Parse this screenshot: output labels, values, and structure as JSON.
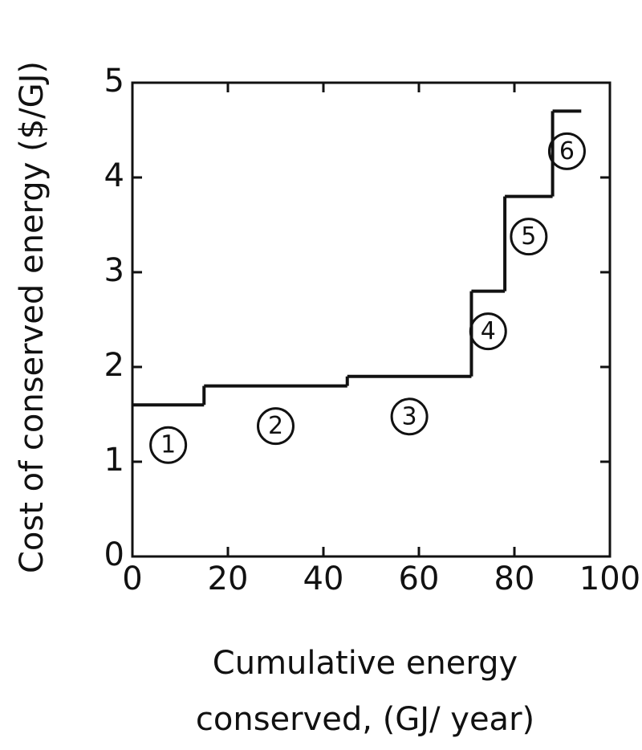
{
  "chart_data": {
    "type": "step",
    "xlabel": [
      "Cumulative energy",
      "conserved, (GJ/ year)"
    ],
    "ylabel": "Cost of conserved energy ($/GJ)",
    "x": [
      0,
      15,
      45,
      71,
      78,
      88,
      94
    ],
    "values": [
      1.6,
      1.8,
      1.9,
      2.8,
      3.8,
      4.7
    ],
    "labels": [
      "1",
      "2",
      "3",
      "4",
      "5",
      "6"
    ],
    "color": "#111111",
    "xlim": [
      0,
      100
    ],
    "ylim": [
      0,
      5
    ],
    "xticks": [
      0,
      20,
      40,
      60,
      80,
      100
    ],
    "yticks": [
      0,
      1,
      2,
      3,
      4,
      5
    ],
    "grid": false
  }
}
